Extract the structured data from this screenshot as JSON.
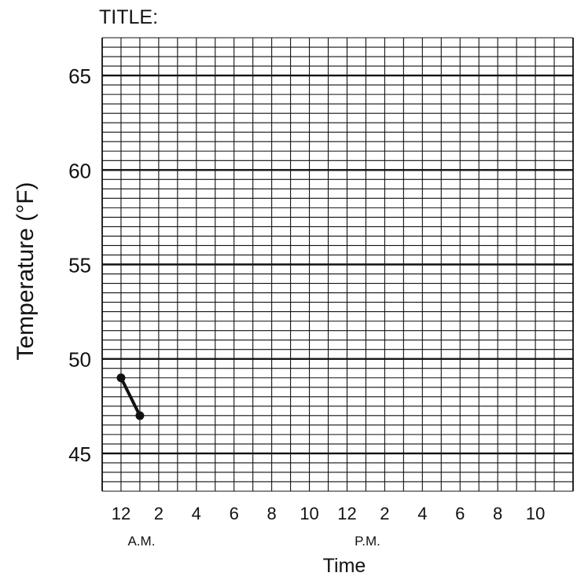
{
  "chart_data": {
    "type": "line",
    "title": "TITLE:",
    "xlabel": "Time",
    "ylabel": "Temperature (°F)",
    "ylim": [
      43,
      67
    ],
    "y_ticks": [
      45,
      50,
      55,
      60,
      65
    ],
    "x_ticks": [
      "12",
      "2",
      "4",
      "6",
      "8",
      "10",
      "12",
      "2",
      "4",
      "6",
      "8",
      "10"
    ],
    "x_period_labels": [
      "A.M.",
      "P.M."
    ],
    "grid": true,
    "series": [
      {
        "x": [
          "12 A.M.",
          "1 A.M."
        ],
        "values": [
          49,
          47
        ]
      }
    ]
  }
}
